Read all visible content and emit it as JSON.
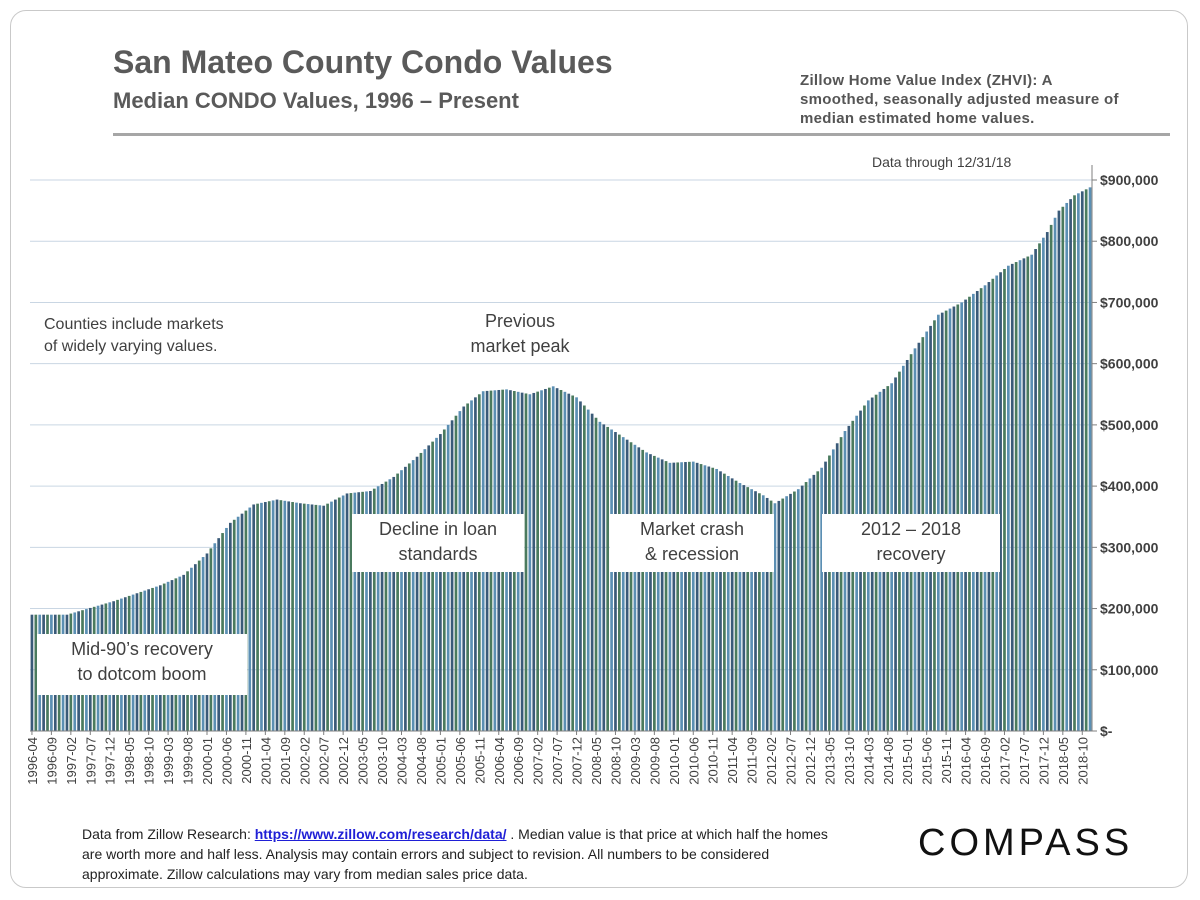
{
  "header": {
    "title": "San Mateo County Condo Values",
    "subtitle": "Median CONDO Values, 1996 – Present",
    "zhvi_note": "Zillow Home Value Index (ZHVI): A smoothed, seasonally adjusted measure of median estimated home values."
  },
  "notes": {
    "data_through": "Data through  12/31/18",
    "counties_line1": "Counties include markets",
    "counties_line2": "of widely varying values.",
    "peak_line1": "Previous",
    "peak_line2": "market peak"
  },
  "annotations": {
    "mid90s_line1": "Mid-90’s recovery",
    "mid90s_line2": "to dotcom boom",
    "decline_line1": "Decline in loan",
    "decline_line2": "standards",
    "crash_line1": "Market crash",
    "crash_line2": "& recession",
    "recovery_line1": "2012 – 2018",
    "recovery_line2": "recovery"
  },
  "footer": {
    "source_prefix": "Data from Zillow Research: ",
    "source_link": "https://www.zillow.com/research/data/",
    "source_suffix": " . Median value is that price at which half the homes are worth more and half less. Analysis may contain errors and subject to revision. All numbers to be considered approximate. Zillow calculations may vary from median sales price data."
  },
  "brand": {
    "logo_text": "COMPASS"
  },
  "chart_data": {
    "type": "bar",
    "title": "San Mateo County Condo Values",
    "series": [
      {
        "name": "",
        "color": "#3a5a78"
      }
    ],
    "bar_colors": [
      "#3a5a78",
      "#4a7a5e",
      "#5b8fb3"
    ],
    "x_start": "1996-04",
    "x_end": "2018-12",
    "x_tick_labels": [
      "1996-04",
      "1996-09",
      "1997-02",
      "1997-07",
      "1997-12",
      "1998-05",
      "1998-10",
      "1999-03",
      "1999-08",
      "2000-01",
      "2000-06",
      "2000-11",
      "2001-04",
      "2001-09",
      "2002-02",
      "2002-07",
      "2002-12",
      "2003-05",
      "2003-10",
      "2004-03",
      "2004-08",
      "2005-01",
      "2005-06",
      "2005-11",
      "2006-04",
      "2006-09",
      "2007-02",
      "2007-07",
      "2007-12",
      "2008-05",
      "2008-10",
      "2009-03",
      "2009-08",
      "2010-01",
      "2010-06",
      "2010-11",
      "2011-04",
      "2011-09",
      "2012-02",
      "2012-07",
      "2012-12",
      "2013-05",
      "2013-10",
      "2014-03",
      "2014-08",
      "2015-01",
      "2015-06",
      "2015-11",
      "2016-04",
      "2016-09",
      "2017-02",
      "2017-07",
      "2017-12",
      "2018-05",
      "2018-10"
    ],
    "key_points": [
      [
        "1996-04",
        190000
      ],
      [
        "1997-01",
        190000
      ],
      [
        "1998-01",
        212000
      ],
      [
        "1999-01",
        238000
      ],
      [
        "1999-07",
        255000
      ],
      [
        "2000-01",
        290000
      ],
      [
        "2000-07",
        340000
      ],
      [
        "2001-01",
        370000
      ],
      [
        "2001-07",
        378000
      ],
      [
        "2002-01",
        372000
      ],
      [
        "2002-07",
        368000
      ],
      [
        "2003-01",
        388000
      ],
      [
        "2003-07",
        392000
      ],
      [
        "2004-01",
        415000
      ],
      [
        "2004-07",
        448000
      ],
      [
        "2005-01",
        485000
      ],
      [
        "2005-07",
        530000
      ],
      [
        "2005-12",
        555000
      ],
      [
        "2006-06",
        558000
      ],
      [
        "2006-12",
        550000
      ],
      [
        "2007-06",
        563000
      ],
      [
        "2007-12",
        545000
      ],
      [
        "2008-06",
        505000
      ],
      [
        "2008-12",
        480000
      ],
      [
        "2009-06",
        455000
      ],
      [
        "2009-12",
        438000
      ],
      [
        "2010-06",
        440000
      ],
      [
        "2010-12",
        428000
      ],
      [
        "2011-06",
        405000
      ],
      [
        "2011-12",
        385000
      ],
      [
        "2012-03",
        372000
      ],
      [
        "2012-09",
        395000
      ],
      [
        "2013-03",
        430000
      ],
      [
        "2013-09",
        490000
      ],
      [
        "2014-03",
        540000
      ],
      [
        "2014-09",
        568000
      ],
      [
        "2015-03",
        625000
      ],
      [
        "2015-09",
        680000
      ],
      [
        "2016-03",
        700000
      ],
      [
        "2016-09",
        728000
      ],
      [
        "2017-03",
        760000
      ],
      [
        "2017-09",
        778000
      ],
      [
        "2018-01",
        815000
      ],
      [
        "2018-04",
        850000
      ],
      [
        "2018-08",
        875000
      ],
      [
        "2018-12",
        888000
      ]
    ],
    "y_ticks": [
      0,
      100000,
      200000,
      300000,
      400000,
      500000,
      600000,
      700000,
      800000,
      900000
    ],
    "y_tick_labels": [
      "$-",
      "$100,000",
      "$200,000",
      "$300,000",
      "$400,000",
      "$500,000",
      "$600,000",
      "$700,000",
      "$800,000",
      "$900,000"
    ],
    "ylim": [
      0,
      900000
    ],
    "grid": true,
    "y_axis_position": "right"
  }
}
